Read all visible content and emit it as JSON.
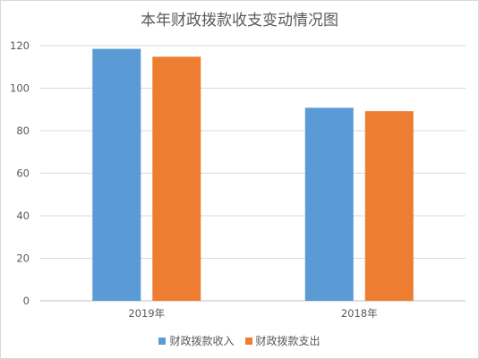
{
  "chart_data": {
    "type": "bar",
    "title": "本年财政拨款收支变动情况图",
    "categories": [
      "2019年",
      "2018年"
    ],
    "series": [
      {
        "name": "财政拨款收入",
        "color": "#5b9bd5",
        "values": [
          118.5,
          90.8
        ]
      },
      {
        "name": "财政拨款支出",
        "color": "#ed7d31",
        "values": [
          114.8,
          89.2
        ]
      }
    ],
    "ylim": [
      0,
      120
    ],
    "yticks": [
      0,
      20,
      40,
      60,
      80,
      100,
      120
    ],
    "grid": true,
    "legend_position": "bottom",
    "xlabel": "",
    "ylabel": ""
  }
}
